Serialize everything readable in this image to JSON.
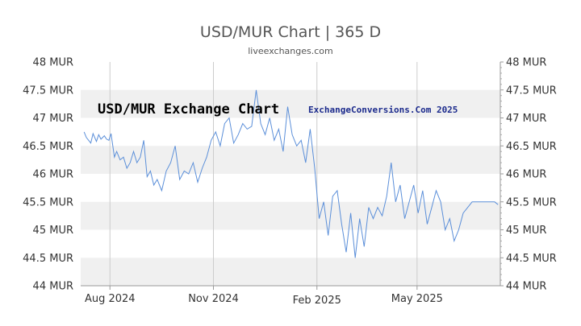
{
  "chart_data": {
    "type": "line",
    "title": "USD/MUR Chart | 365 D",
    "subtitle": "liveexchanges.com",
    "annotations": [
      "USD/MUR Exchange Chart",
      "ExchangeConversions.Com 2025"
    ],
    "xlabel": "",
    "ylabel": "",
    "ylim": [
      44,
      48
    ],
    "y_ticks": [
      44,
      44.5,
      45,
      45.5,
      46,
      46.5,
      47,
      47.5,
      48
    ],
    "y_tick_labels": [
      "44 MUR",
      "44.5 MUR",
      "45 MUR",
      "45.5 MUR",
      "46 MUR",
      "46.5 MUR",
      "47 MUR",
      "47.5 MUR",
      "48 MUR"
    ],
    "x_ticks": [
      "2024-08-01",
      "2024-11-01",
      "2025-02-01",
      "2025-05-01"
    ],
    "x_tick_labels": [
      "Aug 2024",
      "Nov 2024",
      "Feb 2025",
      "May 2025"
    ],
    "xlim": [
      "2024-07-06",
      "2025-07-14"
    ],
    "grid": "vertical lines at x ticks; alternating horizontal bands",
    "line_color": "#5b8fd9",
    "band_color": "#f0f0f0",
    "series": [
      {
        "x": [
          "2024-07-09",
          "2024-07-11",
          "2024-07-13",
          "2024-07-15",
          "2024-07-17",
          "2024-07-20",
          "2024-07-22",
          "2024-07-24",
          "2024-07-27",
          "2024-07-29",
          "2024-07-31",
          "2024-08-02",
          "2024-08-05",
          "2024-08-07",
          "2024-08-10",
          "2024-08-13",
          "2024-08-16",
          "2024-08-19",
          "2024-08-22",
          "2024-08-25",
          "2024-08-28",
          "2024-08-31",
          "2024-09-03",
          "2024-09-06",
          "2024-09-09",
          "2024-09-12",
          "2024-09-16",
          "2024-09-20",
          "2024-09-24",
          "2024-09-28",
          "2024-10-02",
          "2024-10-06",
          "2024-10-10",
          "2024-10-14",
          "2024-10-18",
          "2024-10-22",
          "2024-10-26",
          "2024-10-30",
          "2024-11-03",
          "2024-11-07",
          "2024-11-11",
          "2024-11-15",
          "2024-11-19",
          "2024-11-23",
          "2024-11-27",
          "2024-12-01",
          "2024-12-05",
          "2024-12-09",
          "2024-12-13",
          "2024-12-17",
          "2024-12-21",
          "2024-12-25",
          "2024-12-29",
          "2025-01-02",
          "2025-01-06",
          "2025-01-10",
          "2025-01-14",
          "2025-01-18",
          "2025-01-22",
          "2025-01-26",
          "2025-01-30",
          "2025-02-03",
          "2025-02-07",
          "2025-02-11",
          "2025-02-15",
          "2025-02-19",
          "2025-02-23",
          "2025-02-27",
          "2025-03-03",
          "2025-03-07",
          "2025-03-11",
          "2025-03-15",
          "2025-03-19",
          "2025-03-23",
          "2025-03-27",
          "2025-03-31",
          "2025-04-04",
          "2025-04-08",
          "2025-04-12",
          "2025-04-16",
          "2025-04-20",
          "2025-04-24",
          "2025-04-28",
          "2025-05-02",
          "2025-05-06",
          "2025-05-10",
          "2025-05-14",
          "2025-05-18",
          "2025-05-22",
          "2025-05-26",
          "2025-05-30",
          "2025-06-03",
          "2025-06-07",
          "2025-06-11",
          "2025-06-15",
          "2025-06-19",
          "2025-06-23",
          "2025-06-27",
          "2025-07-01",
          "2025-07-05",
          "2025-07-09",
          "2025-07-12"
        ],
        "values": [
          46.75,
          46.65,
          46.6,
          46.55,
          46.72,
          46.58,
          46.7,
          46.62,
          46.68,
          46.62,
          46.6,
          46.72,
          46.3,
          46.4,
          46.25,
          46.3,
          46.1,
          46.2,
          46.4,
          46.2,
          46.3,
          46.6,
          45.95,
          46.05,
          45.8,
          45.9,
          45.7,
          46.05,
          46.2,
          46.5,
          45.9,
          46.05,
          46.0,
          46.2,
          45.85,
          46.1,
          46.3,
          46.6,
          46.75,
          46.5,
          46.9,
          47.0,
          46.55,
          46.7,
          46.9,
          46.8,
          46.85,
          47.5,
          46.9,
          46.7,
          47.0,
          46.6,
          46.8,
          46.4,
          47.2,
          46.7,
          46.5,
          46.6,
          46.2,
          46.8,
          46.1,
          45.2,
          45.5,
          44.9,
          45.6,
          45.7,
          45.1,
          44.6,
          45.3,
          44.5,
          45.2,
          44.7,
          45.4,
          45.2,
          45.4,
          45.25,
          45.6,
          46.2,
          45.5,
          45.8,
          45.2,
          45.5,
          45.8,
          45.3,
          45.7,
          45.1,
          45.4,
          45.7,
          45.5,
          45.0,
          45.2,
          44.8,
          45.0,
          45.3,
          45.4,
          45.5,
          45.5,
          45.5,
          45.5,
          45.5,
          45.5,
          45.45
        ]
      }
    ]
  }
}
